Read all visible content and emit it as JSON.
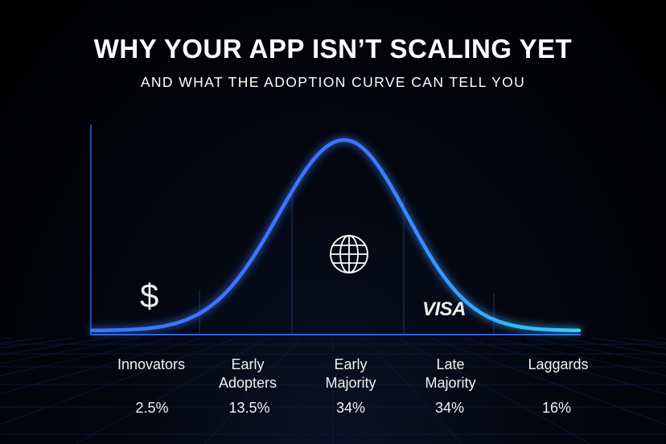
{
  "header": {
    "title": "WHY YOUR APP ISN’T SCALING YET",
    "subtitle": "AND WHAT THE ADOPTION CURVE CAN TELL YOU"
  },
  "colors": {
    "curve_start": "#3a76ff",
    "curve_end": "#36d0ff",
    "axis": "#2f5fe0",
    "divider": "#1a3370"
  },
  "icons": {
    "innovators": "dollar-icon",
    "early_majority": "globe-icon",
    "late_majority": "visa-logo"
  },
  "visa_logo_text": "VISA",
  "dollar_symbol": "$",
  "segments": [
    {
      "label_line1": "Innovators",
      "label_line2": "",
      "percent": "2.5%"
    },
    {
      "label_line1": "Early",
      "label_line2": "Adopters",
      "percent": "13.5%"
    },
    {
      "label_line1": "Early",
      "label_line2": "Majority",
      "percent": "34%"
    },
    {
      "label_line1": "Late",
      "label_line2": "Majority",
      "percent": "34%"
    },
    {
      "label_line1": "Laggards",
      "label_line2": "",
      "percent": "16%"
    }
  ]
}
